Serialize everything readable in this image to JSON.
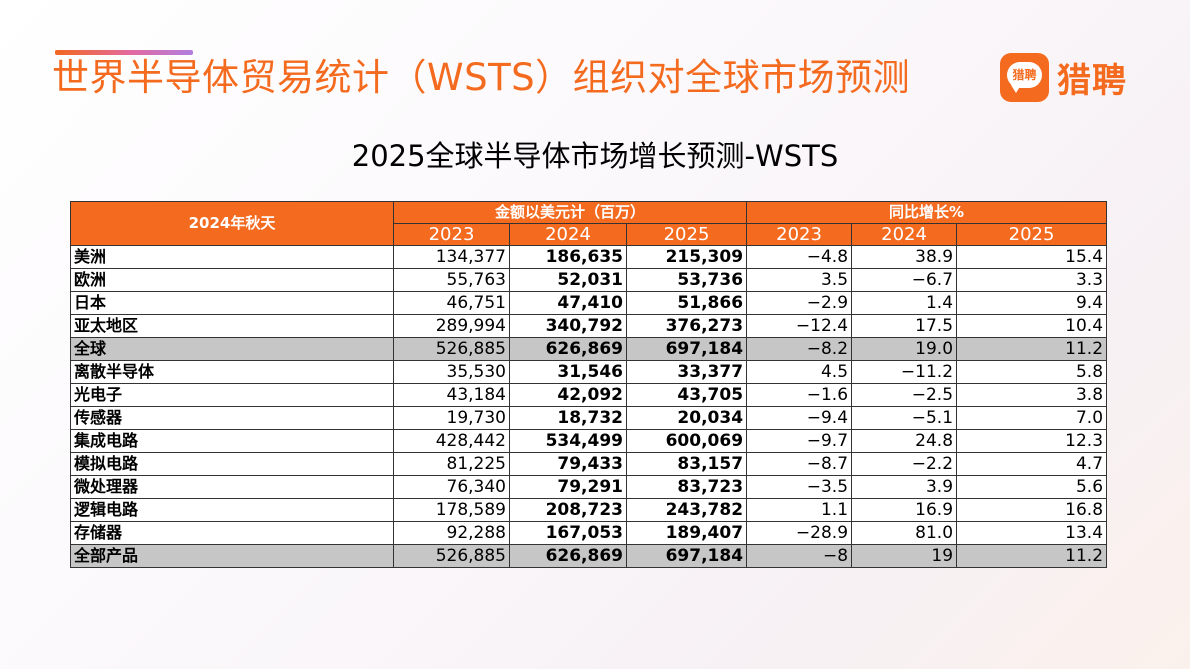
{
  "header": {
    "title": "世界半导体贸易统计（WSTS）组织对全球市场预测",
    "brand": {
      "badge_text": "猎聘",
      "name": "猎聘",
      "color": "#f46a1e"
    }
  },
  "table_title": "2025全球半导体市场增长预测-WSTS",
  "table": {
    "corner_label": "2024年秋天",
    "group_amount": "金额以美元计（百万）",
    "group_growth": "同比增长%",
    "years": [
      "2023",
      "2024",
      "2025",
      "2023",
      "2024",
      "2025"
    ],
    "rows": [
      {
        "label": "美洲",
        "values": [
          "134,377",
          "186,635",
          "215,309",
          "−4.8",
          "38.9",
          "15.4"
        ]
      },
      {
        "label": "欧洲",
        "values": [
          "55,763",
          "52,031",
          "53,736",
          "3.5",
          "−6.7",
          "3.3"
        ]
      },
      {
        "label": "日本",
        "values": [
          "46,751",
          "47,410",
          "51,866",
          "−2.9",
          "1.4",
          "9.4"
        ]
      },
      {
        "label": "亚太地区",
        "values": [
          "289,994",
          "340,792",
          "376,273",
          "−12.4",
          "17.5",
          "10.4"
        ]
      },
      {
        "label": "全球",
        "values": [
          "526,885",
          "626,869",
          "697,184",
          "−8.2",
          "19.0",
          "11.2"
        ],
        "total": true
      },
      {
        "label": "离散半导体",
        "values": [
          "35,530",
          "31,546",
          "33,377",
          "4.5",
          "−11.2",
          "5.8"
        ]
      },
      {
        "label": "光电子",
        "values": [
          "43,184",
          "42,092",
          "43,705",
          "−1.6",
          "−2.5",
          "3.8"
        ]
      },
      {
        "label": "传感器",
        "values": [
          "19,730",
          "18,732",
          "20,034",
          "−9.4",
          "−5.1",
          "7.0"
        ]
      },
      {
        "label": "集成电路",
        "values": [
          "428,442",
          "534,499",
          "600,069",
          "−9.7",
          "24.8",
          "12.3"
        ]
      },
      {
        "label": "模拟电路",
        "values": [
          "81,225",
          "79,433",
          "83,157",
          "−8.7",
          "−2.2",
          "4.7"
        ]
      },
      {
        "label": "微处理器",
        "values": [
          "76,340",
          "79,291",
          "83,723",
          "−3.5",
          "3.9",
          "5.6"
        ]
      },
      {
        "label": "逻辑电路",
        "values": [
          "178,589",
          "208,723",
          "243,782",
          "1.1",
          "16.9",
          "16.8"
        ]
      },
      {
        "label": "存储器",
        "values": [
          "92,288",
          "167,053",
          "189,407",
          "−28.9",
          "81.0",
          "13.4"
        ]
      },
      {
        "label": "全部产品",
        "values": [
          "526,885",
          "626,869",
          "697,184",
          "−8",
          "19",
          "11.2"
        ],
        "total": true
      }
    ]
  }
}
